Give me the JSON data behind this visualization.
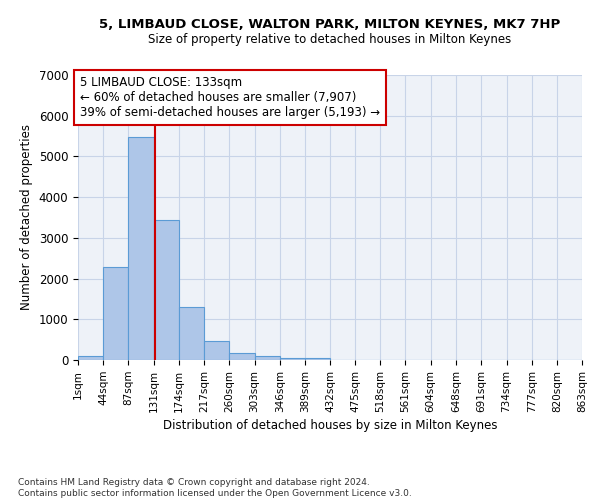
{
  "title1": "5, LIMBAUD CLOSE, WALTON PARK, MILTON KEYNES, MK7 7HP",
  "title2": "Size of property relative to detached houses in Milton Keynes",
  "xlabel": "Distribution of detached houses by size in Milton Keynes",
  "ylabel": "Number of detached properties",
  "bar_values": [
    100,
    2280,
    5480,
    3430,
    1310,
    470,
    165,
    90,
    60,
    40,
    10,
    5,
    2,
    1,
    0,
    0,
    0,
    0,
    0,
    0
  ],
  "bin_edges": [
    1,
    44,
    87,
    131,
    174,
    217,
    260,
    303,
    346,
    389,
    432,
    475,
    518,
    561,
    604,
    648,
    691,
    734,
    777,
    820,
    863
  ],
  "tick_labels": [
    "1sqm",
    "44sqm",
    "87sqm",
    "131sqm",
    "174sqm",
    "217sqm",
    "260sqm",
    "303sqm",
    "346sqm",
    "389sqm",
    "432sqm",
    "475sqm",
    "518sqm",
    "561sqm",
    "604sqm",
    "648sqm",
    "691sqm",
    "734sqm",
    "777sqm",
    "820sqm",
    "863sqm"
  ],
  "bar_color": "#aec6e8",
  "bar_edge_color": "#5b9bd5",
  "grid_color": "#c8d4e8",
  "bg_color": "#eef2f8",
  "red_line_x": 133,
  "annotation_line1": "5 LIMBAUD CLOSE: 133sqm",
  "annotation_line2": "← 60% of detached houses are smaller (7,907)",
  "annotation_line3": "39% of semi-detached houses are larger (5,193) →",
  "annotation_border_color": "#cc0000",
  "footer": "Contains HM Land Registry data © Crown copyright and database right 2024.\nContains public sector information licensed under the Open Government Licence v3.0.",
  "ylim": [
    0,
    7000
  ],
  "yticks": [
    0,
    1000,
    2000,
    3000,
    4000,
    5000,
    6000,
    7000
  ]
}
